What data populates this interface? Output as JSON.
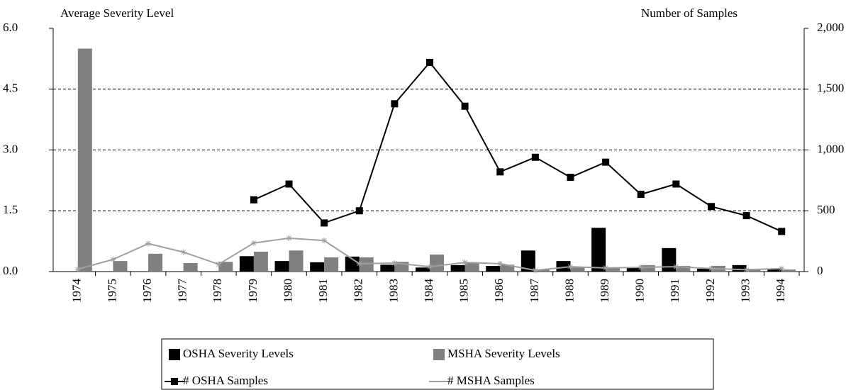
{
  "chart_data": {
    "type": "bar",
    "y_axis_label": "Average Severity Level",
    "y2_axis_label": "Number of Samples",
    "categories": [
      "1974",
      "1975",
      "1976",
      "1977",
      "1978",
      "1979",
      "1980",
      "1981",
      "1982",
      "1983",
      "1984",
      "1985",
      "1986",
      "1987",
      "1988",
      "1989",
      "1990",
      "1991",
      "1992",
      "1993",
      "1994"
    ],
    "series": [
      {
        "name": "OSHA Severity Levels",
        "type": "bar",
        "color": "#000000",
        "values": [
          null,
          null,
          null,
          null,
          null,
          0.38,
          0.26,
          0.23,
          0.37,
          0.17,
          0.1,
          0.16,
          0.14,
          0.52,
          0.26,
          1.08,
          0.1,
          0.58,
          0.07,
          0.16,
          0.07
        ]
      },
      {
        "name": "MSHA Severity Levels",
        "type": "bar",
        "color": "#808080",
        "values": [
          5.5,
          0.26,
          0.44,
          0.21,
          0.24,
          0.49,
          0.52,
          0.35,
          0.35,
          0.24,
          0.42,
          0.23,
          0.17,
          0.05,
          0.1,
          0.09,
          0.16,
          0.14,
          0.14,
          0.07,
          0.05
        ]
      },
      {
        "name": "# OSHA Samples",
        "type": "line",
        "axis": "y2",
        "color": "#000000",
        "values": [
          null,
          null,
          null,
          null,
          null,
          590,
          720,
          400,
          500,
          1380,
          1720,
          1360,
          820,
          940,
          775,
          900,
          635,
          720,
          535,
          460,
          330
        ]
      },
      {
        "name": "# MSHA Samples",
        "type": "line",
        "axis": "y2",
        "color": "#a0a0a0",
        "values": [
          20,
          100,
          230,
          160,
          60,
          235,
          275,
          255,
          65,
          70,
          40,
          75,
          65,
          10,
          40,
          30,
          35,
          40,
          25,
          15,
          25
        ]
      }
    ],
    "ylim": [
      0,
      6
    ],
    "yticks": [
      {
        "value": 0,
        "label": "0.0"
      },
      1.5,
      {
        "value": 3,
        "label": "3.0"
      },
      4.5,
      {
        "value": 6,
        "label": "6.0"
      }
    ],
    "y2lim": [
      0,
      2000
    ],
    "y2ticks": [
      0,
      500,
      {
        "value": 1000,
        "label": "1,000"
      },
      {
        "value": 1500,
        "label": "1,500"
      },
      {
        "value": 2000,
        "label": "2,000"
      }
    ],
    "grid": true,
    "legend": "bottom"
  }
}
